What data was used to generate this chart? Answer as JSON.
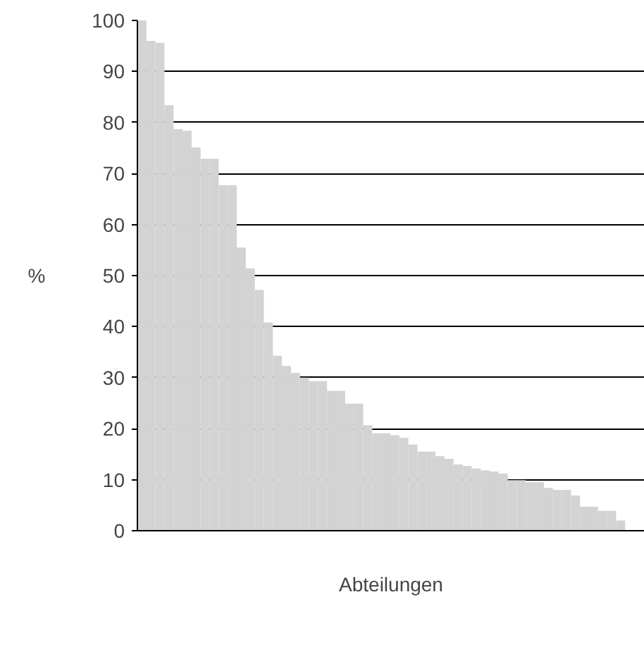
{
  "chart_data": {
    "type": "bar",
    "xlabel": "Abteilungen",
    "ylabel": "%",
    "color": "#d3d3d3",
    "categories": [
      null,
      null,
      null,
      null,
      null,
      null,
      null,
      null,
      null,
      null,
      null,
      null,
      null,
      null,
      null,
      null,
      null,
      null,
      null,
      null,
      null,
      null,
      null,
      null,
      null,
      null,
      null,
      null,
      null,
      null,
      null,
      null,
      null,
      null,
      null,
      null,
      null,
      null,
      null,
      null,
      null,
      null,
      null,
      null,
      null,
      null,
      null,
      null,
      null,
      null,
      null,
      null,
      null,
      null
    ],
    "values": [
      100,
      96,
      95.6,
      83.4,
      78.7,
      78.4,
      75.1,
      72.9,
      72.9,
      67.7,
      67.7,
      55.5,
      51.4,
      47.2,
      40.8,
      34.3,
      32.3,
      30.9,
      30.0,
      29.3,
      29.3,
      27.4,
      27.4,
      24.9,
      24.9,
      20.7,
      19.1,
      19.1,
      18.7,
      18.2,
      16.9,
      15.5,
      15.5,
      14.6,
      14.1,
      13.0,
      12.7,
      12.2,
      11.8,
      11.6,
      11.2,
      9.9,
      9.9,
      9.5,
      9.5,
      8.4,
      8.0,
      8.0,
      6.9,
      4.7,
      4.7,
      3.9,
      3.9,
      2.0
    ],
    "ylim": [
      0,
      100
    ],
    "yticks": [
      0,
      10,
      20,
      30,
      40,
      50,
      60,
      70,
      80,
      90,
      100
    ],
    "grid": "y"
  }
}
